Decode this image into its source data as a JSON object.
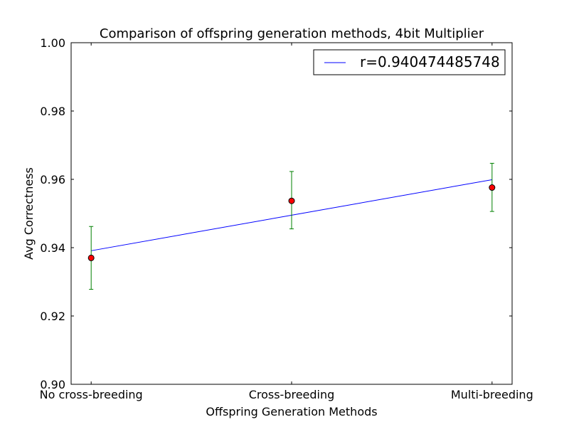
{
  "chart_data": {
    "type": "scatter",
    "title": "Comparison of offspring generation methods, 4bit Multiplier",
    "xlabel": "Offspring Generation Methods",
    "ylabel": "Avg Correctness",
    "categories": [
      "No cross-breeding",
      "Cross-breeding",
      "Multi-breeding"
    ],
    "ylim": [
      0.9,
      1.0
    ],
    "yticks": [
      "0.90",
      "0.92",
      "0.94",
      "0.96",
      "0.98",
      "1.00"
    ],
    "ytick_values": [
      0.9,
      0.92,
      0.94,
      0.96,
      0.98,
      1.0
    ],
    "grid": false,
    "legend_position": "top-right",
    "series": [
      {
        "kind": "points_with_error",
        "values": [
          0.937,
          0.9537,
          0.9576
        ],
        "err_low": [
          0.9278,
          0.9455,
          0.9506
        ],
        "err_high": [
          0.9462,
          0.9623,
          0.9647
        ],
        "marker_color": "#ff0000",
        "error_color": "#008000"
      },
      {
        "kind": "fit_line",
        "name": "r=0.940474485748",
        "values": [
          0.9391,
          0.9495,
          0.9599
        ],
        "color": "#0000ff"
      }
    ]
  }
}
